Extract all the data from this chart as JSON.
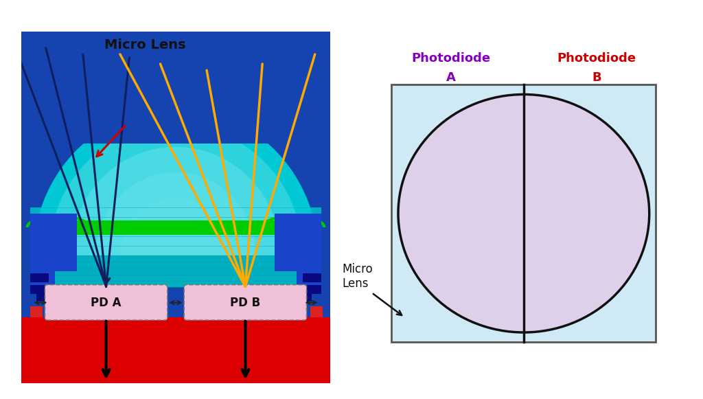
{
  "bg_color": "#ffffff",
  "left_panel": {
    "bg_blue": "#1544b0",
    "cyan_dome": "#00c8d4",
    "cyan_dome_light": "#80e8f0",
    "cyan_flat": "#00b8c8",
    "green_layer": "#00cc00",
    "med_blue": "#2255cc",
    "dark_blue_block": "#0a0a80",
    "red_base": "#dd0000",
    "pink_pd": "#f0c0d8",
    "pd_border": "#888888",
    "pd_a_label": "PD A",
    "pd_b_label": "PD B",
    "micro_lens_label": "Micro Lens",
    "arrow_color_dark": "#0d1f5c",
    "arrow_color_gold": "#ffaa00",
    "red_arrow_color": "#cc0000",
    "layer_colors": [
      "#00b0c0",
      "#009ab0",
      "#0088a0",
      "#007890",
      "#006880",
      "#005870"
    ]
  },
  "right_panel": {
    "bg_light_blue": "#d0eaf5",
    "circle_fill": "#ddd0e8",
    "circle_stroke": "#111111",
    "divider_color": "#111111",
    "border_color": "#555555",
    "label_a_color": "#8800bb",
    "label_b_color": "#cc0000"
  }
}
